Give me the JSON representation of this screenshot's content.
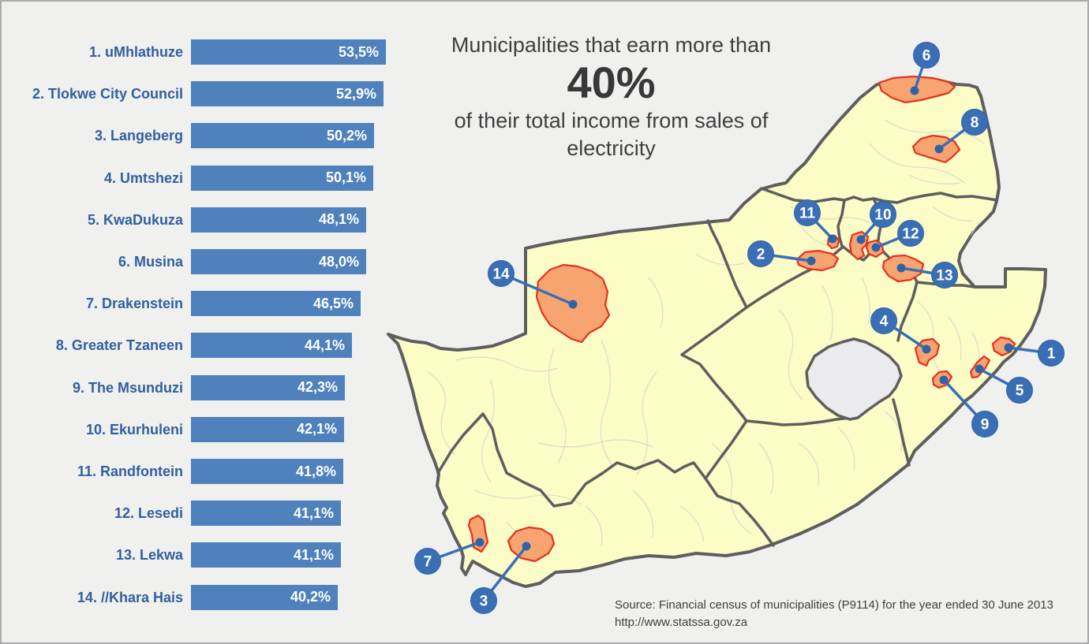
{
  "title": {
    "line1": "Municipalities that earn more than",
    "highlight": "40%",
    "line2": "of their total income from sales of electricity"
  },
  "source": {
    "line1": "Source: Financial census of municipalities (P9114) for the year ended 30 June 2013",
    "line2": "http://www.statssa.gov.za"
  },
  "chart_data": {
    "type": "bar",
    "orientation": "horizontal",
    "title": "Municipalities that earn more than 40% of their total income from sales of electricity",
    "categories": [
      "1. uMhlathuze",
      "2. Tlokwe City Council",
      "3. Langeberg",
      "4. Umtshezi",
      "5. KwaDukuza",
      "6. Musina",
      "7. Drakenstein",
      "8. Greater Tzaneen",
      "9. The Msunduzi",
      "10. Ekurhuleni",
      "11. Randfontein",
      "12. Lesedi",
      "13. Lekwa",
      "14. //Khara Hais"
    ],
    "values": [
      53.5,
      52.9,
      50.2,
      50.1,
      48.1,
      48.0,
      46.5,
      44.1,
      42.3,
      42.1,
      41.8,
      41.1,
      41.1,
      40.2
    ],
    "value_labels": [
      "53,5%",
      "52,9%",
      "50,2%",
      "50,1%",
      "48,1%",
      "48,0%",
      "46,5%",
      "44,1%",
      "42,3%",
      "42,1%",
      "41,8%",
      "41,1%",
      "41,1%",
      "40,2%"
    ],
    "xlim": [
      0,
      53.5
    ],
    "unit": "%",
    "bar_color": "#4F81BD",
    "label_color": "#31609F",
    "value_color": "#FFFFFF"
  },
  "map": {
    "region": "South Africa municipal map",
    "land_color": "#FBFCC6",
    "enclave_color": "#EBEBEE",
    "border_color": "#5E5E5E",
    "municipal_line_color": "#DCDCCB",
    "highlight_fill": "#F8A470",
    "highlight_stroke": "#E6301F",
    "marker_color": "#3A6FB5",
    "marker_dot_color": "#2F63A8",
    "markers": [
      {
        "number": "1",
        "municipality": "uMhlathuze"
      },
      {
        "number": "2",
        "municipality": "Tlokwe City Council"
      },
      {
        "number": "3",
        "municipality": "Langeberg"
      },
      {
        "number": "4",
        "municipality": "Umtshezi"
      },
      {
        "number": "5",
        "municipality": "KwaDukuza"
      },
      {
        "number": "6",
        "municipality": "Musina"
      },
      {
        "number": "7",
        "municipality": "Drakenstein"
      },
      {
        "number": "8",
        "municipality": "Greater Tzaneen"
      },
      {
        "number": "9",
        "municipality": "The Msunduzi"
      },
      {
        "number": "10",
        "municipality": "Ekurhuleni"
      },
      {
        "number": "11",
        "municipality": "Randfontein"
      },
      {
        "number": "12",
        "municipality": "Lesedi"
      },
      {
        "number": "13",
        "municipality": "Lekwa"
      },
      {
        "number": "14",
        "municipality": "//Khara Hais"
      }
    ]
  }
}
